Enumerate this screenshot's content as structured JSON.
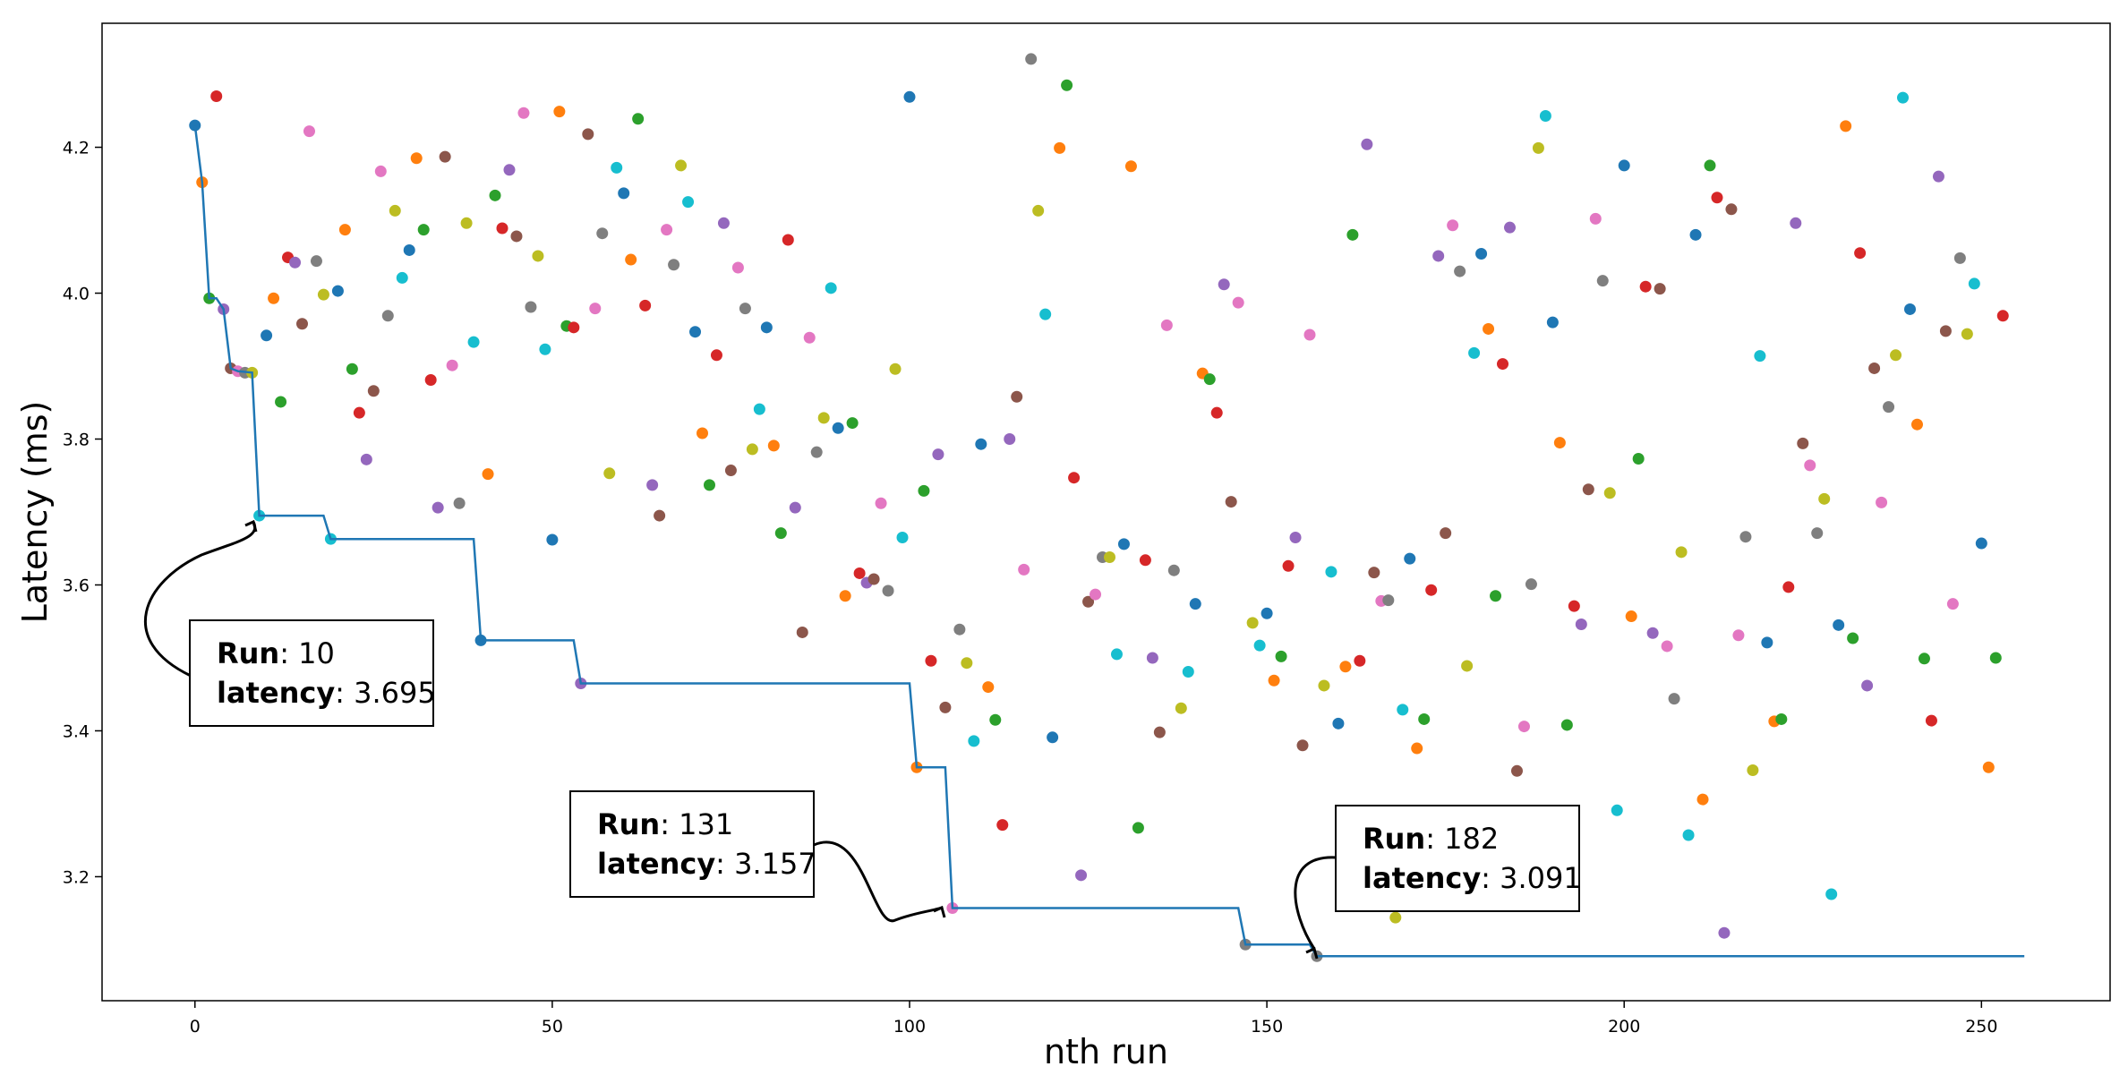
{
  "chart_data": {
    "type": "scatter",
    "xlabel": "nth run",
    "ylabel": "Latency (ms)",
    "xlim": [
      -13,
      268
    ],
    "ylim": [
      3.03,
      4.37
    ],
    "xticks": [
      0,
      50,
      100,
      150,
      200,
      250
    ],
    "yticks": [
      3.2,
      3.4,
      3.6,
      3.8,
      4.0,
      4.2
    ],
    "ytick_labels": [
      "3.2",
      "3.4",
      "3.6",
      "3.8",
      "4.0",
      "4.2"
    ],
    "grid": false,
    "legend": "none",
    "palette": [
      "#1f77b4",
      "#ff7f0e",
      "#2ca02c",
      "#d62728",
      "#9467bd",
      "#8c564b",
      "#e377c2",
      "#7f7f7f",
      "#bcbd22",
      "#17becf"
    ],
    "line_color": "#1f77b4",
    "points": [
      [
        0,
        4.23
      ],
      [
        1,
        4.152
      ],
      [
        2,
        3.993
      ],
      [
        3,
        4.27
      ],
      [
        4,
        3.978
      ],
      [
        5,
        3.897
      ],
      [
        6,
        3.893
      ],
      [
        7,
        3.891
      ],
      [
        8,
        3.891
      ],
      [
        9,
        3.695
      ],
      [
        10,
        3.942
      ],
      [
        11,
        3.993
      ],
      [
        12,
        3.851
      ],
      [
        13,
        4.049
      ],
      [
        14,
        4.042
      ],
      [
        15,
        3.958
      ],
      [
        16,
        4.222
      ],
      [
        17,
        4.044
      ],
      [
        18,
        3.998
      ],
      [
        19,
        3.663
      ],
      [
        20,
        4.003
      ],
      [
        21,
        4.087
      ],
      [
        22,
        3.896
      ],
      [
        23,
        3.836
      ],
      [
        24,
        3.772
      ],
      [
        25,
        3.866
      ],
      [
        26,
        4.167
      ],
      [
        27,
        3.969
      ],
      [
        28,
        4.113
      ],
      [
        29,
        4.021
      ],
      [
        30,
        4.059
      ],
      [
        31,
        4.185
      ],
      [
        32,
        4.087
      ],
      [
        33,
        3.881
      ],
      [
        34,
        3.706
      ],
      [
        35,
        4.187
      ],
      [
        36,
        3.901
      ],
      [
        37,
        3.712
      ],
      [
        38,
        4.096
      ],
      [
        39,
        3.933
      ],
      [
        40,
        3.524
      ],
      [
        41,
        3.752
      ],
      [
        42,
        4.134
      ],
      [
        43,
        4.089
      ],
      [
        44,
        4.169
      ],
      [
        45,
        4.078
      ],
      [
        46,
        4.247
      ],
      [
        47,
        3.981
      ],
      [
        48,
        4.051
      ],
      [
        49,
        3.923
      ],
      [
        50,
        3.662
      ],
      [
        51,
        4.249
      ],
      [
        52,
        3.955
      ],
      [
        53,
        3.953
      ],
      [
        54,
        3.465
      ],
      [
        55,
        4.218
      ],
      [
        56,
        3.979
      ],
      [
        57,
        4.082
      ],
      [
        58,
        3.753
      ],
      [
        59,
        4.172
      ],
      [
        60,
        4.137
      ],
      [
        61,
        4.046
      ],
      [
        62,
        4.239
      ],
      [
        63,
        3.983
      ],
      [
        64,
        3.737
      ],
      [
        65,
        3.695
      ],
      [
        66,
        4.087
      ],
      [
        67,
        4.039
      ],
      [
        68,
        4.175
      ],
      [
        69,
        4.125
      ],
      [
        70,
        3.947
      ],
      [
        71,
        3.808
      ],
      [
        72,
        3.737
      ],
      [
        73,
        3.915
      ],
      [
        74,
        4.096
      ],
      [
        75,
        3.757
      ],
      [
        76,
        4.035
      ],
      [
        77,
        3.979
      ],
      [
        78,
        3.786
      ],
      [
        79,
        3.841
      ],
      [
        80,
        3.953
      ],
      [
        81,
        3.791
      ],
      [
        82,
        3.671
      ],
      [
        83,
        4.073
      ],
      [
        84,
        3.706
      ],
      [
        85,
        3.535
      ],
      [
        86,
        3.939
      ],
      [
        87,
        3.782
      ],
      [
        88,
        3.829
      ],
      [
        89,
        4.007
      ],
      [
        90,
        3.815
      ],
      [
        91,
        3.585
      ],
      [
        92,
        3.822
      ],
      [
        93,
        3.616
      ],
      [
        94,
        3.603
      ],
      [
        95,
        3.608
      ],
      [
        96,
        3.712
      ],
      [
        97,
        3.592
      ],
      [
        98,
        3.896
      ],
      [
        99,
        3.665
      ],
      [
        100,
        4.269
      ],
      [
        101,
        3.35
      ],
      [
        102,
        3.729
      ],
      [
        103,
        3.496
      ],
      [
        104,
        3.779
      ],
      [
        105,
        3.432
      ],
      [
        106,
        3.157
      ],
      [
        107,
        3.539
      ],
      [
        108,
        3.493
      ],
      [
        109,
        3.386
      ],
      [
        110,
        3.793
      ],
      [
        111,
        3.46
      ],
      [
        112,
        3.415
      ],
      [
        113,
        3.271
      ],
      [
        114,
        3.8
      ],
      [
        115,
        3.858
      ],
      [
        116,
        3.621
      ],
      [
        117,
        4.321
      ],
      [
        118,
        4.113
      ],
      [
        119,
        3.971
      ],
      [
        120,
        3.391
      ],
      [
        121,
        4.199
      ],
      [
        122,
        4.285
      ],
      [
        123,
        3.747
      ],
      [
        124,
        3.202
      ],
      [
        125,
        3.577
      ],
      [
        126,
        3.587
      ],
      [
        127,
        3.638
      ],
      [
        128,
        3.638
      ],
      [
        129,
        3.505
      ],
      [
        130,
        3.656
      ],
      [
        131,
        4.174
      ],
      [
        132,
        3.267
      ],
      [
        133,
        3.634
      ],
      [
        134,
        3.5
      ],
      [
        135,
        3.398
      ],
      [
        136,
        3.956
      ],
      [
        137,
        3.62
      ],
      [
        138,
        3.431
      ],
      [
        139,
        3.481
      ],
      [
        140,
        3.574
      ],
      [
        141,
        3.89
      ],
      [
        142,
        3.882
      ],
      [
        143,
        3.836
      ],
      [
        144,
        4.012
      ],
      [
        145,
        3.714
      ],
      [
        146,
        3.987
      ],
      [
        147,
        3.107
      ],
      [
        148,
        3.548
      ],
      [
        149,
        3.517
      ],
      [
        150,
        3.561
      ],
      [
        151,
        3.469
      ],
      [
        152,
        3.502
      ],
      [
        153,
        3.626
      ],
      [
        154,
        3.665
      ],
      [
        155,
        3.38
      ],
      [
        156,
        3.943
      ],
      [
        157,
        3.091
      ],
      [
        158,
        3.462
      ],
      [
        159,
        3.618
      ],
      [
        160,
        3.41
      ],
      [
        161,
        3.488
      ],
      [
        162,
        4.08
      ],
      [
        163,
        3.496
      ],
      [
        164,
        4.204
      ],
      [
        165,
        3.617
      ],
      [
        166,
        3.578
      ],
      [
        167,
        3.579
      ],
      [
        168,
        3.144
      ],
      [
        169,
        3.429
      ],
      [
        170,
        3.636
      ],
      [
        171,
        3.376
      ],
      [
        172,
        3.416
      ],
      [
        173,
        3.593
      ],
      [
        174,
        4.051
      ],
      [
        175,
        3.671
      ],
      [
        176,
        4.093
      ],
      [
        177,
        4.03
      ],
      [
        178,
        3.489
      ],
      [
        179,
        3.918
      ],
      [
        180,
        4.054
      ],
      [
        181,
        3.951
      ],
      [
        182,
        3.585
      ],
      [
        183,
        3.903
      ],
      [
        184,
        4.09
      ],
      [
        185,
        3.345
      ],
      [
        186,
        3.406
      ],
      [
        187,
        3.601
      ],
      [
        188,
        4.199
      ],
      [
        189,
        4.243
      ],
      [
        190,
        3.96
      ],
      [
        191,
        3.795
      ],
      [
        192,
        3.408
      ],
      [
        193,
        3.571
      ],
      [
        194,
        3.546
      ],
      [
        195,
        3.731
      ],
      [
        196,
        4.102
      ],
      [
        197,
        4.017
      ],
      [
        198,
        3.726
      ],
      [
        199,
        3.291
      ],
      [
        200,
        4.175
      ],
      [
        201,
        3.557
      ],
      [
        202,
        3.773
      ],
      [
        203,
        4.009
      ],
      [
        204,
        3.534
      ],
      [
        205,
        4.006
      ],
      [
        206,
        3.516
      ],
      [
        207,
        3.444
      ],
      [
        208,
        3.645
      ],
      [
        209,
        3.257
      ],
      [
        210,
        4.08
      ],
      [
        211,
        3.306
      ],
      [
        212,
        4.175
      ],
      [
        213,
        4.131
      ],
      [
        214,
        3.123
      ],
      [
        215,
        4.115
      ],
      [
        216,
        3.531
      ],
      [
        217,
        3.666
      ],
      [
        218,
        3.346
      ],
      [
        219,
        3.914
      ],
      [
        220,
        3.521
      ],
      [
        221,
        3.413
      ],
      [
        222,
        3.416
      ],
      [
        223,
        3.597
      ],
      [
        224,
        4.096
      ],
      [
        225,
        3.794
      ],
      [
        226,
        3.764
      ],
      [
        227,
        3.671
      ],
      [
        228,
        3.718
      ],
      [
        229,
        3.176
      ],
      [
        230,
        3.545
      ],
      [
        231,
        4.229
      ],
      [
        232,
        3.527
      ],
      [
        233,
        4.055
      ],
      [
        234,
        3.462
      ],
      [
        235,
        3.897
      ],
      [
        236,
        3.713
      ],
      [
        237,
        3.844
      ],
      [
        238,
        3.915
      ],
      [
        239,
        4.268
      ],
      [
        240,
        3.978
      ],
      [
        241,
        3.82
      ],
      [
        242,
        3.499
      ],
      [
        243,
        3.414
      ],
      [
        244,
        4.16
      ],
      [
        245,
        3.948
      ],
      [
        246,
        3.574
      ],
      [
        247,
        4.048
      ],
      [
        248,
        3.944
      ],
      [
        249,
        4.013
      ],
      [
        250,
        3.657
      ],
      [
        251,
        3.35
      ],
      [
        252,
        3.5
      ],
      [
        253,
        3.969
      ]
    ],
    "running_min": [
      [
        0,
        4.23
      ],
      [
        1,
        4.152
      ],
      [
        2,
        3.993
      ],
      [
        3,
        3.993
      ],
      [
        4,
        3.978
      ],
      [
        5,
        3.897
      ],
      [
        6,
        3.893
      ],
      [
        8,
        3.891
      ],
      [
        9,
        3.695
      ],
      [
        18,
        3.695
      ],
      [
        19,
        3.663
      ],
      [
        39,
        3.663
      ],
      [
        40,
        3.524
      ],
      [
        53,
        3.524
      ],
      [
        54,
        3.465
      ],
      [
        100,
        3.465
      ],
      [
        101,
        3.35
      ],
      [
        105,
        3.35
      ],
      [
        106,
        3.157
      ],
      [
        146,
        3.157
      ],
      [
        147,
        3.107
      ],
      [
        156,
        3.107
      ],
      [
        157,
        3.091
      ],
      [
        256,
        3.091
      ]
    ],
    "annotations": [
      {
        "key": "Run",
        "run": "10",
        "metric": "latency",
        "value": "3.695",
        "point": [
          9,
          3.695
        ]
      },
      {
        "key": "Run",
        "run": "131",
        "metric": "latency",
        "value": "3.157",
        "point": [
          106,
          3.157
        ]
      },
      {
        "key": "Run",
        "run": "182",
        "metric": "latency",
        "value": "3.091",
        "point": [
          157,
          3.091
        ]
      }
    ]
  }
}
